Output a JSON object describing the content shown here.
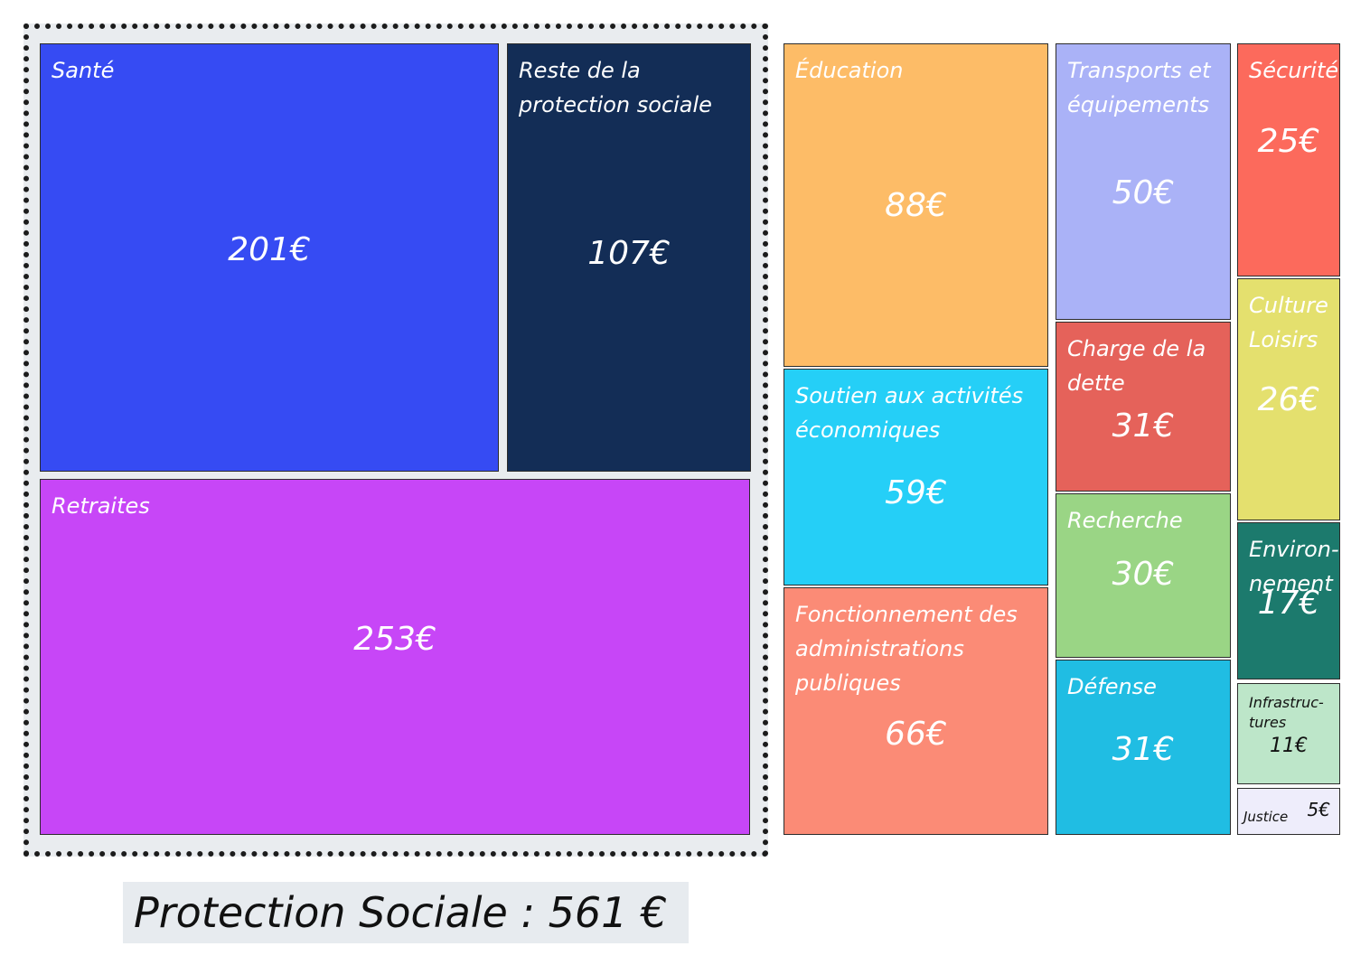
{
  "chart_data": {
    "type": "treemap",
    "unit": "€",
    "group": {
      "label": "Protection Sociale",
      "total_label": "Protection Sociale : 561 €",
      "items": [
        {
          "id": "sante",
          "label": "Santé",
          "value": 201,
          "value_label": "201€",
          "color": "#364bf3"
        },
        {
          "id": "reste",
          "label": "Reste de la\nprotection sociale",
          "value": 107,
          "value_label": "107€",
          "color": "#132d56"
        },
        {
          "id": "retraites",
          "label": "Retraites",
          "value": 253,
          "value_label": "253€",
          "color": "#c746f7"
        }
      ]
    },
    "items": [
      {
        "id": "education",
        "label": "Éducation",
        "value": 88,
        "value_label": "88€",
        "color": "#fdbc67"
      },
      {
        "id": "soutien",
        "label": "Soutien aux activités\néconomiques",
        "value": 59,
        "value_label": "59€",
        "color": "#25cff7"
      },
      {
        "id": "fonctionnement",
        "label": "Fonctionnement des\nadministrations\npubliques",
        "value": 66,
        "value_label": "66€",
        "color": "#fb8b76"
      },
      {
        "id": "transports",
        "label": "Transports et\néquipements",
        "value": 50,
        "value_label": "50€",
        "color": "#aab2f7"
      },
      {
        "id": "dette",
        "label": "Charge de la\ndette",
        "value": 31,
        "value_label": "31€",
        "color": "#e5625a"
      },
      {
        "id": "recherche",
        "label": "Recherche",
        "value": 30,
        "value_label": "30€",
        "color": "#9ad585"
      },
      {
        "id": "defense",
        "label": "Défense",
        "value": 31,
        "value_label": "31€",
        "color": "#20bde3"
      },
      {
        "id": "securite",
        "label": "Sécurité",
        "value": 25,
        "value_label": "25€",
        "color": "#fc6a5c"
      },
      {
        "id": "culture",
        "label": "Culture\nLoisirs",
        "value": 26,
        "value_label": "26€",
        "color": "#e4e06e"
      },
      {
        "id": "environnement",
        "label": "Environ-\nnement",
        "value": 17,
        "value_label": "17€",
        "color": "#1c7a6d"
      },
      {
        "id": "infrastructures",
        "label": "Infrastruc-\ntures",
        "value": 11,
        "value_label": "11€",
        "color": "#bde6c9"
      },
      {
        "id": "justice",
        "label": "Justice",
        "value": 5,
        "value_label": "5€",
        "color": "#eeedfb"
      }
    ]
  }
}
